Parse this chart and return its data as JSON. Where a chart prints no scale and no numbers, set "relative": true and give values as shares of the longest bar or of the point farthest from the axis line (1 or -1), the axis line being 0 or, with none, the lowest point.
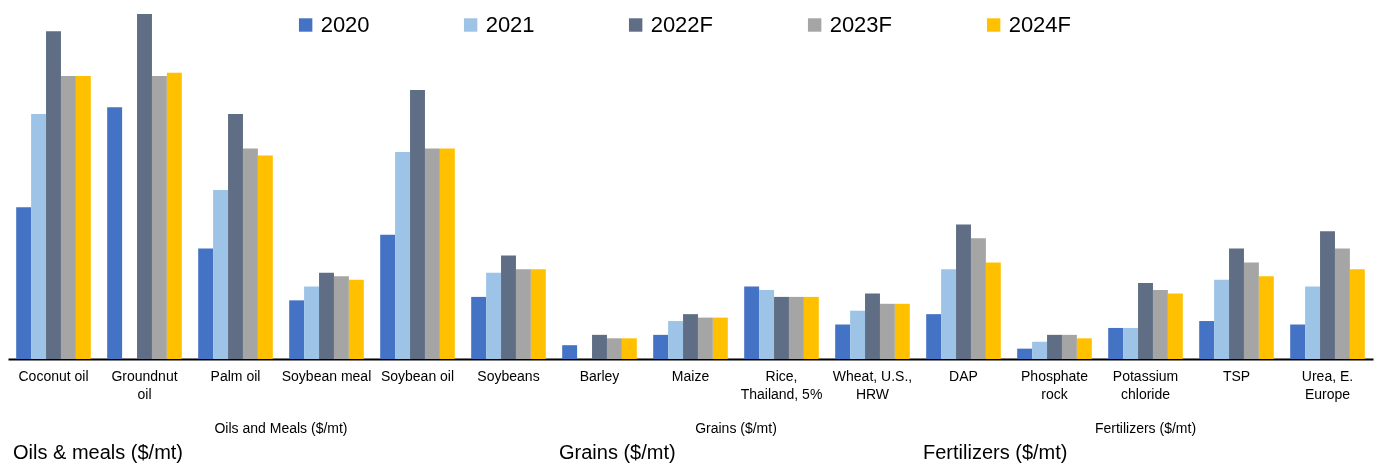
{
  "chart_data": {
    "type": "bar",
    "relative": true,
    "legend": "top",
    "categories": [
      "Coconut oil",
      "Groundnut oil",
      "Palm oil",
      "Soybean meal",
      "Soybean oil",
      "Soybeans",
      "Barley",
      "Maize",
      "Rice, Thailand, 5%",
      "Wheat, U.S., HRW",
      "DAP",
      "Phosphate rock",
      "Potassium chloride",
      "TSP",
      "Urea, E. Europe"
    ],
    "series": [
      {
        "name": "2020",
        "color": "#4472c4",
        "values": [
          0.44,
          0.73,
          0.32,
          0.17,
          0.36,
          0.18,
          0.04,
          0.07,
          0.21,
          0.1,
          0.13,
          0.03,
          0.09,
          0.11,
          0.1
        ]
      },
      {
        "name": "2021",
        "color": "#9dc3e6",
        "values": [
          0.71,
          null,
          0.49,
          0.21,
          0.6,
          0.25,
          null,
          0.11,
          0.2,
          0.14,
          0.26,
          0.05,
          0.09,
          0.23,
          0.21
        ]
      },
      {
        "name": "2022F",
        "color": "#5f6e84",
        "values": [
          0.95,
          1,
          0.71,
          0.25,
          0.78,
          0.3,
          0.07,
          0.13,
          0.18,
          0.19,
          0.39,
          0.07,
          0.22,
          0.32,
          0.37
        ]
      },
      {
        "name": "2023F",
        "color": "#a5a5a5",
        "values": [
          0.82,
          0.82,
          0.61,
          0.24,
          0.61,
          0.26,
          0.06,
          0.12,
          0.18,
          0.16,
          0.35,
          0.07,
          0.2,
          0.28,
          0.32
        ]
      },
      {
        "name": "2024F",
        "color": "#ffc000",
        "values": [
          0.82,
          0.83,
          0.59,
          0.23,
          0.61,
          0.26,
          0.06,
          0.12,
          0.18,
          0.16,
          0.28,
          0.06,
          0.19,
          0.24,
          0.26
        ]
      }
    ],
    "annotations": [
      "Oils and Meals ($/mt)",
      "Grains ($/mt)",
      "Fertilizers ($/mt)",
      "Oils & meals ($/mt)",
      "Grains ($/mt)",
      "Fertilizers ($/mt)"
    ]
  }
}
